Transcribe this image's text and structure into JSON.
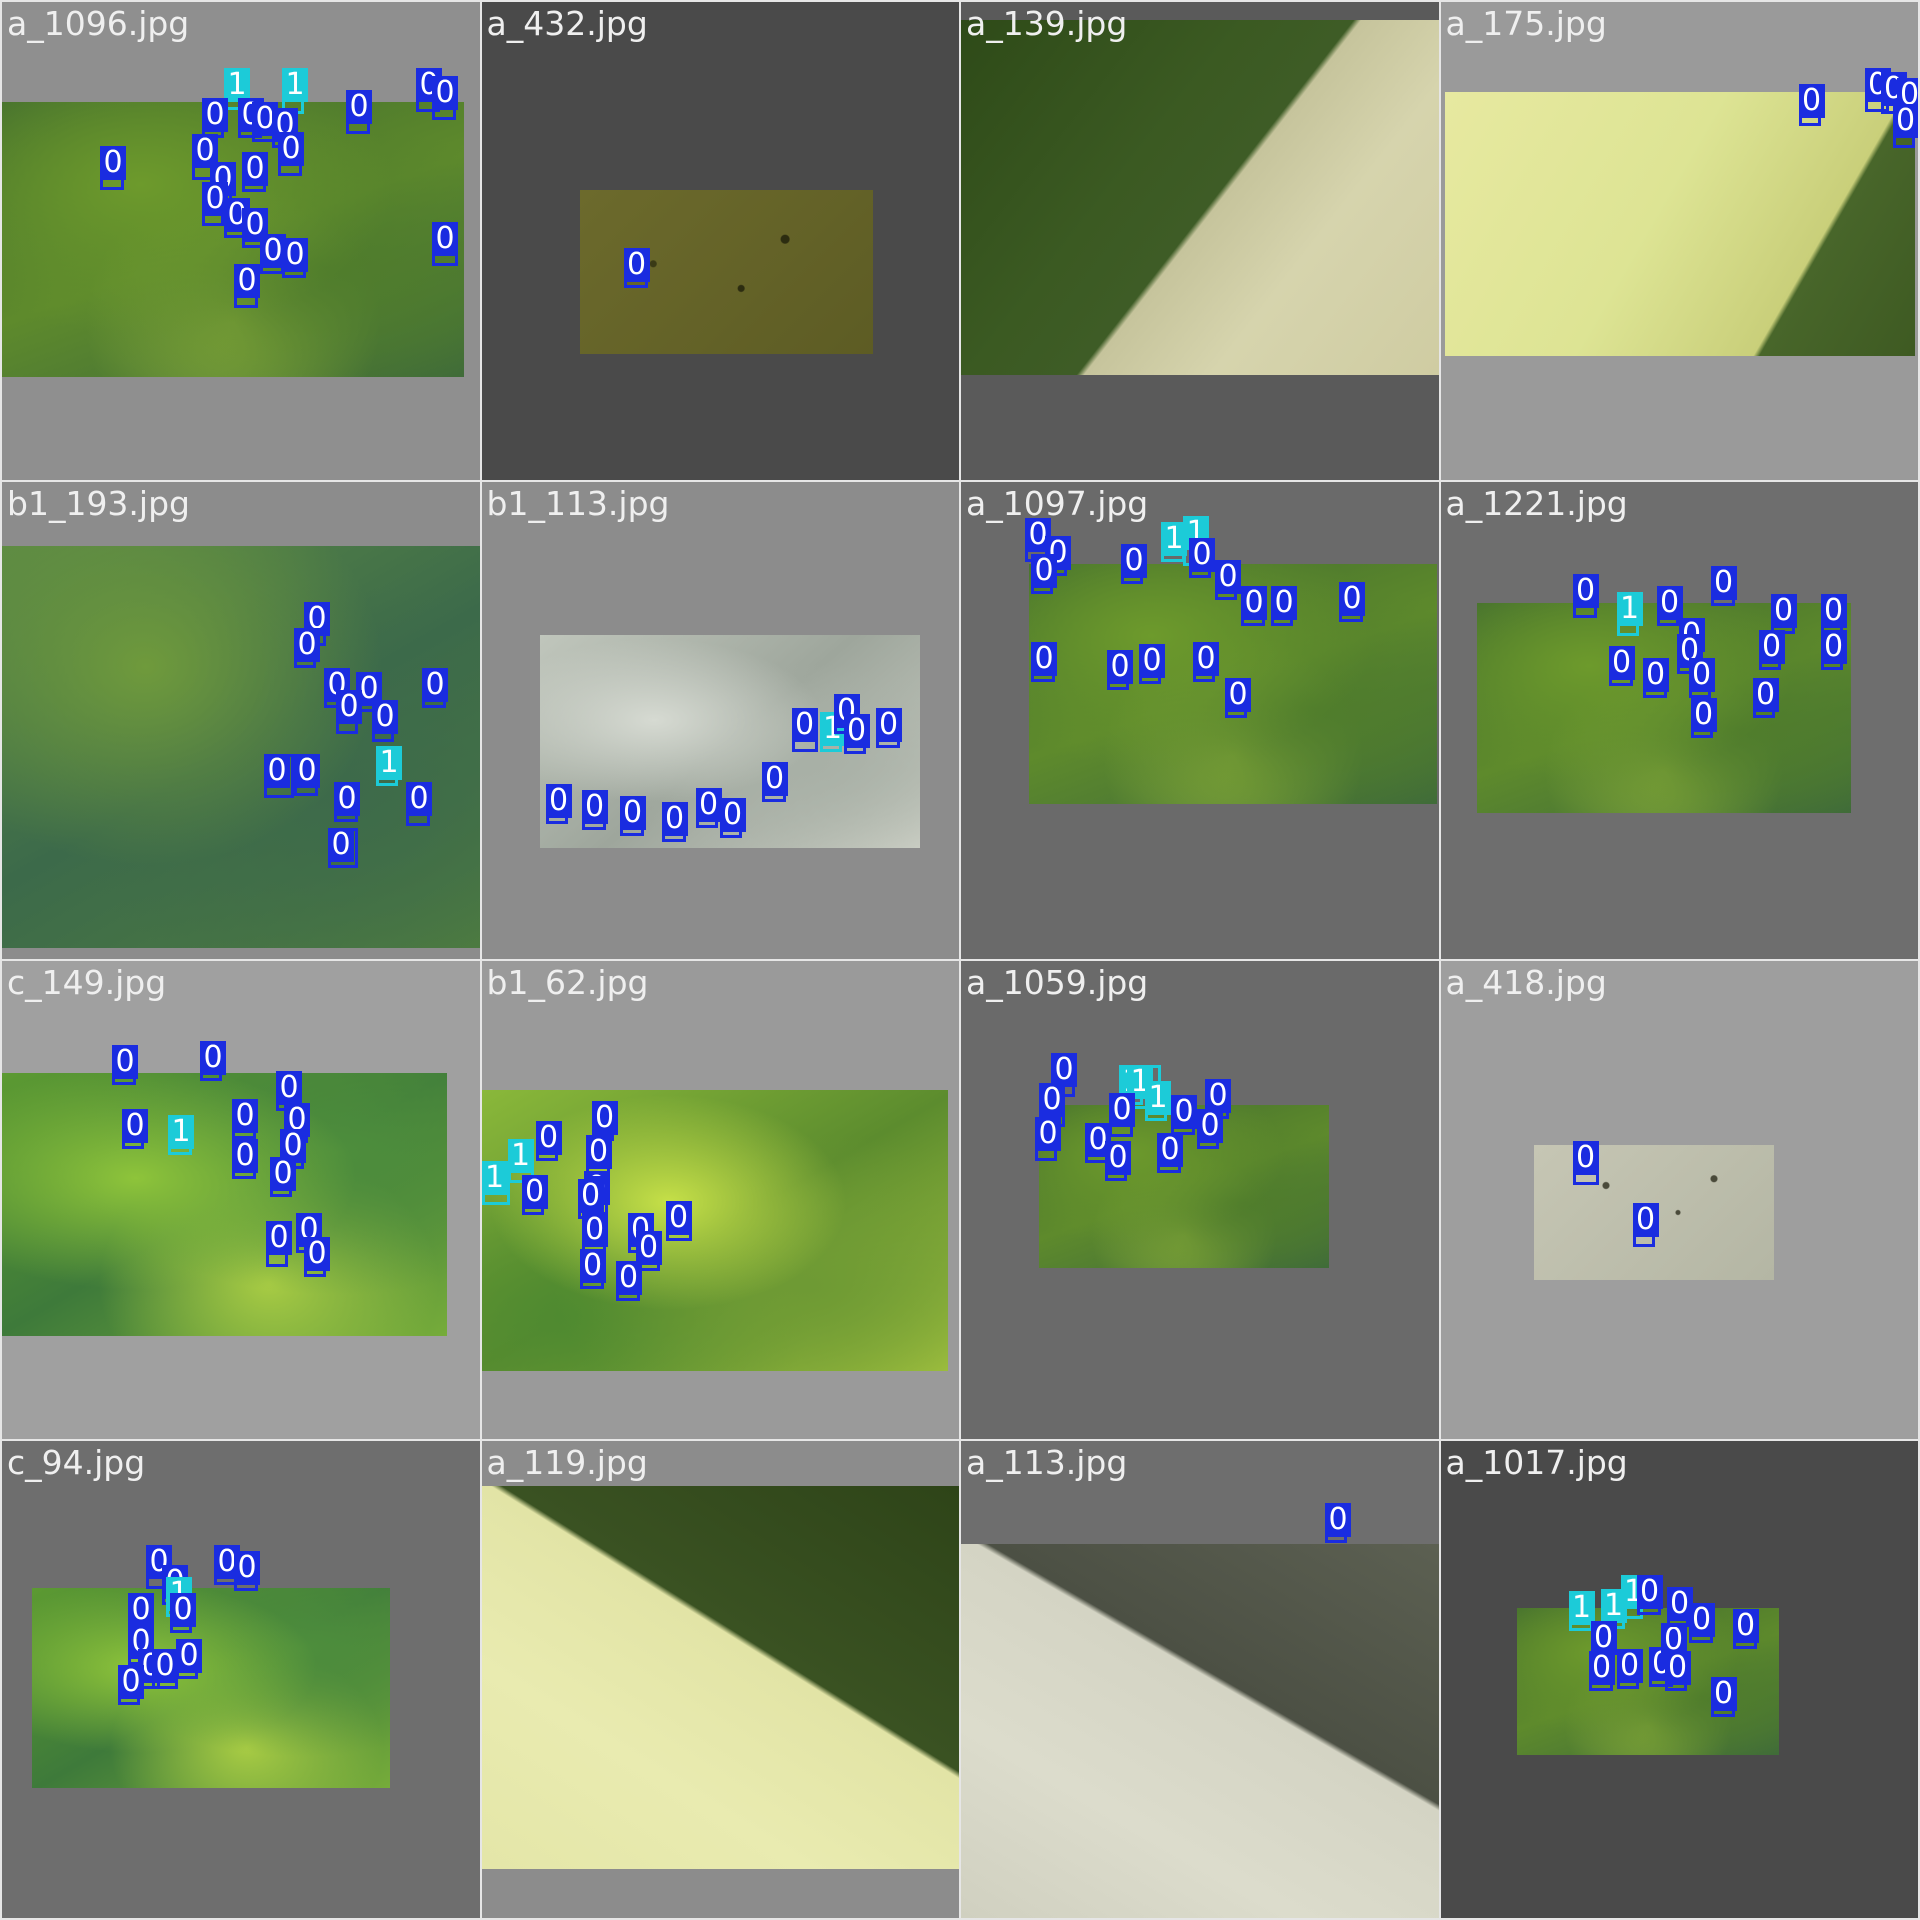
{
  "colors": {
    "class_0": "#1a2ce0",
    "class_1": "#1ccbd8",
    "title_text": "#efefef",
    "grid_gap": "#e6e6e6"
  },
  "tiles": [
    {
      "filename": "a_1096.jpg",
      "background": "#8f8f8f",
      "photo": {
        "style": "mossy_green"
      },
      "labels": [
        "1",
        "1",
        "0",
        "0",
        "0",
        "0",
        "0",
        "0",
        "0",
        "0",
        "0",
        "0",
        "0",
        "0",
        "0",
        "0",
        "0",
        "0",
        "0",
        "0",
        "0"
      ]
    },
    {
      "filename": "a_432.jpg",
      "background": "#4a4a4a",
      "photo": {
        "style": "dark_olive"
      },
      "labels": [
        "0"
      ]
    },
    {
      "filename": "a_139.jpg",
      "background": "#5a5a5a",
      "photo": {
        "style": "dark_diag"
      },
      "labels": []
    },
    {
      "filename": "a_175.jpg",
      "background": "#9a9a9a",
      "photo": {
        "style": "pale_yellow_corner"
      },
      "labels": [
        "0",
        "0",
        "0",
        "0",
        "0"
      ]
    },
    {
      "filename": "b1_193.jpg",
      "background": "#8c8c8c",
      "photo": {
        "style": "mossy_teal"
      },
      "labels": [
        "0",
        "0",
        "0",
        "0",
        "0",
        "0",
        "0",
        "0",
        "0",
        "1",
        "0",
        "0",
        "0"
      ]
    },
    {
      "filename": "b1_113.jpg",
      "background": "#8c8c8c",
      "photo": {
        "style": "grey_white"
      },
      "labels": [
        "0",
        "0",
        "0",
        "0",
        "0",
        "0",
        "0",
        "1",
        "0",
        "0",
        "0",
        "0"
      ]
    },
    {
      "filename": "a_1097.jpg",
      "background": "#6a6a6a",
      "photo": {
        "style": "mossy_green"
      },
      "labels": [
        "0",
        "0",
        "0",
        "1",
        "1",
        "0",
        "0",
        "0",
        "0",
        "0",
        "0",
        "0",
        "0",
        "0",
        "0",
        "0"
      ]
    },
    {
      "filename": "a_1221.jpg",
      "background": "#6e6e6e",
      "photo": {
        "style": "mossy_green"
      },
      "labels": [
        "0",
        "1",
        "0",
        "0",
        "0",
        "0",
        "0",
        "0",
        "0",
        "0",
        "0",
        "0",
        "0",
        "0",
        "0"
      ]
    },
    {
      "filename": "c_149.jpg",
      "background": "#a0a0a0",
      "photo": {
        "style": "bright_green"
      },
      "labels": [
        "0",
        "0",
        "0",
        "1",
        "0",
        "0",
        "0",
        "0",
        "0",
        "0",
        "0",
        "0",
        "0"
      ]
    },
    {
      "filename": "b1_62.jpg",
      "background": "#9a9a9a",
      "photo": {
        "style": "lime"
      },
      "labels": [
        "0",
        "1",
        "1",
        "0",
        "0",
        "0",
        "0",
        "0",
        "0",
        "0",
        "0",
        "0",
        "0",
        "0"
      ]
    },
    {
      "filename": "a_1059.jpg",
      "background": "#6a6a6a",
      "photo": {
        "style": "mossy_green"
      },
      "labels": [
        "0",
        "0",
        "1",
        "1",
        "1",
        "0",
        "0",
        "0",
        "0",
        "0",
        "0",
        "0",
        "0"
      ]
    },
    {
      "filename": "a_418.jpg",
      "background": "#9e9e9e",
      "photo": {
        "style": "pale_white"
      },
      "labels": [
        "0",
        "0"
      ]
    },
    {
      "filename": "c_94.jpg",
      "background": "#6e6e6e",
      "photo": {
        "style": "bright_green"
      },
      "labels": [
        "0",
        "0",
        "0",
        "1",
        "0",
        "0",
        "0",
        "0",
        "0",
        "0",
        "0",
        "0"
      ]
    },
    {
      "filename": "a_119.jpg",
      "background": "#8c8c8c",
      "photo": {
        "style": "pale_dark_corner"
      },
      "labels": []
    },
    {
      "filename": "a_113.jpg",
      "background": "#6e6e6e",
      "photo": {
        "style": "grey_diag"
      },
      "labels": [
        "0"
      ]
    },
    {
      "filename": "a_1017.jpg",
      "background": "#4a4a4a",
      "photo": {
        "style": "mossy_green"
      },
      "labels": [
        "1",
        "1",
        "1",
        "0",
        "0",
        "0",
        "0",
        "0",
        "0",
        "0",
        "0",
        "0",
        "0",
        "0"
      ]
    }
  ]
}
